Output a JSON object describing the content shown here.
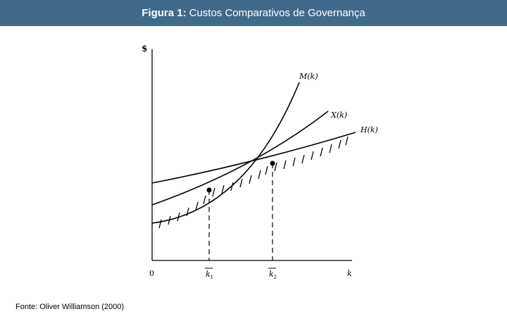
{
  "header": {
    "title_bold": "Figura 1:",
    "title_rest": "Custos Comparativos de Governança"
  },
  "diagram": {
    "y_axis_label": "$",
    "origin_label": "0",
    "x_axis_label": "k",
    "curves": {
      "m": "M(k)",
      "x": "X(k)",
      "h": "H(k)"
    },
    "k1_label": "k",
    "k1_sub": "1",
    "k2_label": "k",
    "k2_sub": "2"
  },
  "footer": {
    "source": "Fonte: Oliver Williamson (2000)"
  },
  "colors": {
    "header_bg": "#3f6a8c",
    "header_text": "#ffffff",
    "ink": "#000000"
  }
}
